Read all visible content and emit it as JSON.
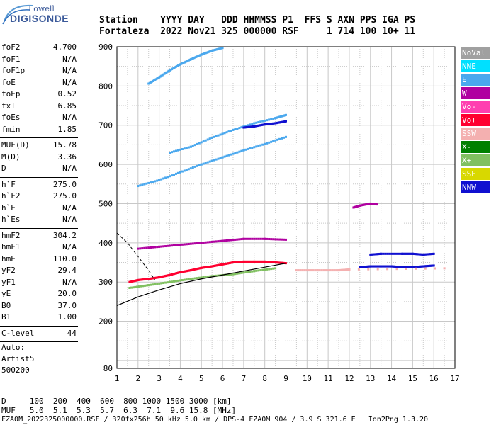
{
  "logo": {
    "line1": "Lowell",
    "line2": "DIGISONDE"
  },
  "header": {
    "line1": "Station    YYYY DAY   DDD HHMMSS P1  FFS S AXN PPS IGA PS",
    "line2": "Fortaleza  2022 Nov21 325 000000 RSF     1 714 100 10+ 11"
  },
  "params": {
    "group1": [
      {
        "name": "foF2",
        "value": "4.700"
      },
      {
        "name": "foF1",
        "value": "N/A"
      },
      {
        "name": "foF1p",
        "value": "N/A"
      },
      {
        "name": "foE",
        "value": "N/A"
      },
      {
        "name": "foEp",
        "value": "0.52"
      },
      {
        "name": "fxI",
        "value": "6.85"
      },
      {
        "name": "foEs",
        "value": "N/A"
      },
      {
        "name": "fmin",
        "value": "1.85"
      }
    ],
    "group2": [
      {
        "name": "MUF(D)",
        "value": "15.78"
      },
      {
        "name": "M(D)",
        "value": "3.36"
      },
      {
        "name": "D",
        "value": "N/A"
      }
    ],
    "group3": [
      {
        "name": "h`F",
        "value": "275.0"
      },
      {
        "name": "h`F2",
        "value": "275.0"
      },
      {
        "name": "h`E",
        "value": "N/A"
      },
      {
        "name": "h`Es",
        "value": "N/A"
      }
    ],
    "group4": [
      {
        "name": "hmF2",
        "value": "304.2"
      },
      {
        "name": "hmF1",
        "value": "N/A"
      },
      {
        "name": "hmE",
        "value": "110.0"
      },
      {
        "name": "yF2",
        "value": "29.4"
      },
      {
        "name": "yF1",
        "value": "N/A"
      },
      {
        "name": "yE",
        "value": "20.0"
      },
      {
        "name": "B0",
        "value": "37.0"
      },
      {
        "name": "B1",
        "value": "1.00"
      }
    ],
    "group5": [
      {
        "name": "C-level",
        "value": "44"
      }
    ]
  },
  "autoscale": {
    "line1": "Auto:",
    "line2": "Artist5",
    "line3": "500200"
  },
  "legend": [
    {
      "label": "NoVal",
      "color": "#a0a0a0"
    },
    {
      "label": "NNE",
      "color": "#00e0ff"
    },
    {
      "label": "E",
      "color": "#4aa8ee"
    },
    {
      "label": "W",
      "color": "#b000a0"
    },
    {
      "label": "Vo-",
      "color": "#ff3fb0"
    },
    {
      "label": "Vo+",
      "color": "#ff0030"
    },
    {
      "label": "SSW",
      "color": "#f4b0b0"
    },
    {
      "label": "X-",
      "color": "#008000"
    },
    {
      "label": "X+",
      "color": "#80c060"
    },
    {
      "label": "SSE",
      "color": "#d8d800"
    },
    {
      "label": "NNW",
      "color": "#1010d0"
    }
  ],
  "footer": {
    "line1": "D     100  200  400  600  800 1000 1500 3000 [km]",
    "line2": "MUF   5.0  5.1  5.3  5.7  6.3  7.1  9.6 15.8 [MHz]",
    "line3": "FZA0M_2022325000000.RSF / 320fx256h 50 kHz 5.0 km / DPS-4 FZA0M 904 / 3.9 S 321.6 E   Ion2Png 1.3.20"
  },
  "chart_data": {
    "type": "scatter",
    "title": "",
    "xlabel": "",
    "ylabel": "",
    "xlim": [
      1,
      17
    ],
    "ylim": [
      80,
      900
    ],
    "x_ticks": [
      1,
      2,
      3,
      4,
      5,
      6,
      7,
      8,
      9,
      10,
      11,
      12,
      13,
      14,
      15,
      16,
      17
    ],
    "y_ticks": [
      80,
      200,
      300,
      400,
      500,
      600,
      700,
      800,
      900
    ],
    "grid": true,
    "legend_position": "right",
    "traces": [
      {
        "name": "E",
        "points": [
          [
            2.5,
            806
          ],
          [
            3.0,
            822
          ],
          [
            3.5,
            840
          ],
          [
            4.0,
            855
          ],
          [
            4.5,
            868
          ],
          [
            5.0,
            880
          ],
          [
            5.5,
            890
          ],
          [
            6.0,
            897
          ]
        ]
      },
      {
        "name": "E",
        "points": [
          [
            2.0,
            545
          ],
          [
            3.0,
            560
          ],
          [
            4.0,
            580
          ],
          [
            5.0,
            600
          ],
          [
            6.0,
            618
          ],
          [
            7.0,
            636
          ],
          [
            8.0,
            652
          ],
          [
            9.0,
            670
          ]
        ]
      },
      {
        "name": "E",
        "points": [
          [
            3.5,
            630
          ],
          [
            4.5,
            645
          ],
          [
            5.5,
            668
          ],
          [
            6.5,
            688
          ],
          [
            7.5,
            705
          ],
          [
            8.5,
            718
          ],
          [
            9.0,
            726
          ]
        ]
      },
      {
        "name": "NNW",
        "points": [
          [
            7.0,
            694
          ],
          [
            7.5,
            697
          ],
          [
            8.0,
            702
          ],
          [
            8.5,
            705
          ],
          [
            9.0,
            710
          ]
        ]
      },
      {
        "name": "Vo+",
        "points": [
          [
            1.6,
            300
          ],
          [
            2.0,
            305
          ],
          [
            2.5,
            308
          ],
          [
            3.0,
            312
          ],
          [
            3.5,
            318
          ],
          [
            4.0,
            325
          ],
          [
            4.5,
            330
          ],
          [
            5.0,
            336
          ],
          [
            5.5,
            340
          ],
          [
            6.0,
            345
          ],
          [
            6.5,
            350
          ],
          [
            7.0,
            352
          ],
          [
            7.5,
            352
          ],
          [
            8.0,
            352
          ],
          [
            8.5,
            350
          ],
          [
            9.0,
            348
          ]
        ]
      },
      {
        "name": "W",
        "points": [
          [
            2.0,
            385
          ],
          [
            3.0,
            390
          ],
          [
            4.0,
            395
          ],
          [
            5.0,
            400
          ],
          [
            6.0,
            405
          ],
          [
            7.0,
            410
          ],
          [
            8.0,
            410
          ],
          [
            9.0,
            408
          ]
        ]
      },
      {
        "name": "NNW",
        "points": [
          [
            12.5,
            338
          ],
          [
            13.0,
            340
          ],
          [
            13.5,
            340
          ],
          [
            14.0,
            340
          ],
          [
            14.5,
            338
          ],
          [
            15.0,
            338
          ],
          [
            15.5,
            340
          ],
          [
            16.0,
            342
          ]
        ]
      },
      {
        "name": "NNW",
        "points": [
          [
            13.0,
            370
          ],
          [
            13.5,
            372
          ],
          [
            14.5,
            372
          ],
          [
            15.0,
            372
          ],
          [
            15.5,
            370
          ],
          [
            16.0,
            372
          ]
        ]
      },
      {
        "name": "W",
        "points": [
          [
            12.2,
            490
          ],
          [
            12.5,
            495
          ],
          [
            13.0,
            500
          ],
          [
            13.3,
            498
          ]
        ]
      },
      {
        "name": "SSW",
        "points": [
          [
            9.5,
            330
          ],
          [
            10.5,
            330
          ],
          [
            11.5,
            330
          ],
          [
            12.0,
            332
          ],
          [
            16.5,
            335
          ]
        ]
      },
      {
        "name": "X+",
        "points": [
          [
            1.6,
            285
          ],
          [
            2.5,
            292
          ],
          [
            3.5,
            300
          ],
          [
            4.5,
            308
          ],
          [
            5.5,
            315
          ],
          [
            6.5,
            320
          ],
          [
            7.5,
            328
          ],
          [
            8.5,
            335
          ]
        ]
      }
    ],
    "model_profile_curve": [
      [
        1.0,
        240
      ],
      [
        2.0,
        262
      ],
      [
        3.0,
        280
      ],
      [
        4.0,
        296
      ],
      [
        5.0,
        308
      ],
      [
        6.0,
        318
      ],
      [
        7.0,
        328
      ],
      [
        8.0,
        338
      ],
      [
        9.0,
        348
      ]
    ],
    "model_profile_dashed": [
      [
        1.0,
        425
      ],
      [
        1.5,
        400
      ],
      [
        2.0,
        365
      ],
      [
        2.5,
        330
      ],
      [
        2.8,
        305
      ]
    ]
  }
}
